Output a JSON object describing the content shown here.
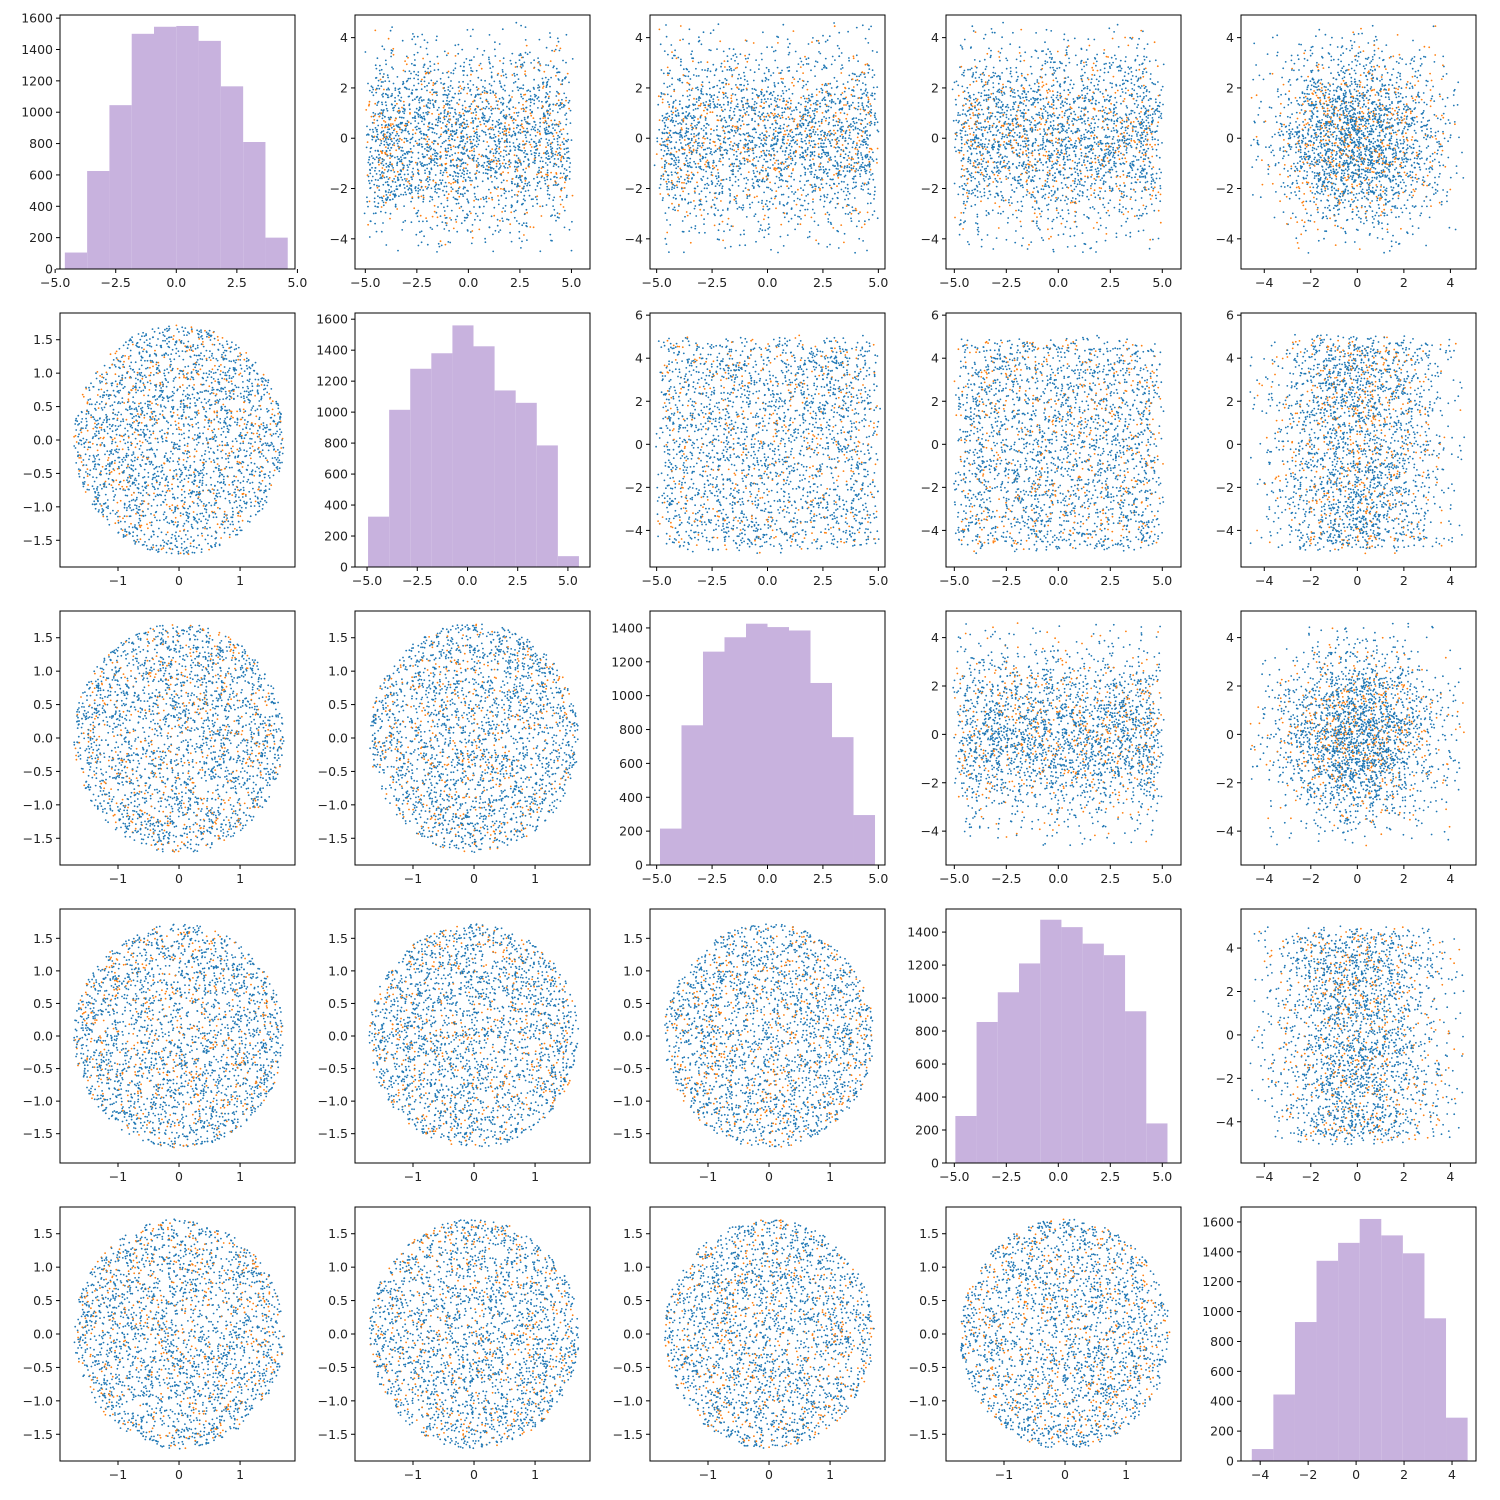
{
  "chart_data": {
    "type": "pairplot",
    "grid_size": 5,
    "colors": {
      "blue": "#1f77b4",
      "orange": "#ff7f0e",
      "hist": "#c8b2de",
      "frame": "#000000"
    },
    "panels": [
      {
        "row": 0,
        "col": 0,
        "type": "histogram",
        "xlim": [
          -4.8,
          4.9
        ],
        "ylim": [
          0,
          1620
        ],
        "bins": [
          -4.6,
          -3.68,
          -2.76,
          -1.84,
          -0.92,
          0.0,
          0.92,
          1.84,
          2.76,
          3.68,
          4.6
        ],
        "counts": [
          105,
          625,
          1045,
          1500,
          1545,
          1550,
          1455,
          1165,
          810,
          200
        ],
        "x_ticks": [
          -5.0,
          -2.5,
          0.0,
          2.5,
          5.0
        ],
        "y_ticks": [
          0,
          200,
          400,
          600,
          800,
          1000,
          1200,
          1400,
          1600
        ]
      },
      {
        "row": 0,
        "col": 1,
        "type": "scatter",
        "xlim": [
          -5.5,
          5.9
        ],
        "ylim": [
          -5.2,
          4.9
        ],
        "dist_x": "uniform",
        "dist_y": "normal",
        "x_ticks": [
          -5.0,
          -2.5,
          0.0,
          2.5,
          5.0
        ],
        "y_ticks": [
          -4,
          -2,
          0,
          2,
          4
        ]
      },
      {
        "row": 0,
        "col": 2,
        "type": "scatter",
        "xlim": [
          -5.3,
          5.3
        ],
        "ylim": [
          -5.2,
          4.9
        ],
        "dist_x": "uniform",
        "dist_y": "normal",
        "x_ticks": [
          -5.0,
          -2.5,
          0.0,
          2.5,
          5.0
        ],
        "y_ticks": [
          -4,
          -2,
          0,
          2,
          4
        ]
      },
      {
        "row": 0,
        "col": 3,
        "type": "scatter",
        "xlim": [
          -5.4,
          5.9
        ],
        "ylim": [
          -5.2,
          4.9
        ],
        "dist_x": "uniform",
        "dist_y": "normal",
        "x_ticks": [
          -5.0,
          -2.5,
          0.0,
          2.5,
          5.0
        ],
        "y_ticks": [
          -4,
          -2,
          0,
          2,
          4
        ]
      },
      {
        "row": 0,
        "col": 4,
        "type": "scatter",
        "xlim": [
          -5.0,
          5.1
        ],
        "ylim": [
          -5.2,
          4.9
        ],
        "dist_x": "normal",
        "dist_y": "normal",
        "x_ticks": [
          -4,
          -2,
          0,
          2,
          4
        ],
        "y_ticks": [
          -4,
          -2,
          0,
          2,
          4
        ]
      },
      {
        "row": 1,
        "col": 0,
        "type": "scatter",
        "xlim": [
          -1.95,
          1.9
        ],
        "ylim": [
          -1.9,
          1.9
        ],
        "dist_x": "disk",
        "dist_y": "disk",
        "x_ticks": [
          -1,
          0,
          1
        ],
        "y_ticks": [
          -1.5,
          -1.0,
          -0.5,
          0.0,
          0.5,
          1.0,
          1.5
        ]
      },
      {
        "row": 1,
        "col": 1,
        "type": "histogram",
        "xlim": [
          -5.6,
          6.1
        ],
        "ylim": [
          0,
          1640
        ],
        "bins": [
          -4.95,
          -3.9,
          -2.85,
          -1.8,
          -0.75,
          0.3,
          1.35,
          2.4,
          3.45,
          4.5,
          5.55
        ],
        "counts": [
          325,
          1015,
          1280,
          1380,
          1560,
          1425,
          1140,
          1060,
          785,
          70
        ],
        "x_ticks": [
          -5.0,
          -2.5,
          0.0,
          2.5,
          5.0
        ],
        "y_ticks": [
          0,
          200,
          400,
          600,
          800,
          1000,
          1200,
          1400,
          1600
        ]
      },
      {
        "row": 1,
        "col": 2,
        "type": "scatter",
        "xlim": [
          -5.3,
          5.3
        ],
        "ylim": [
          -5.7,
          6.1
        ],
        "dist_x": "uniform",
        "dist_y": "uniform",
        "x_ticks": [
          -5.0,
          -2.5,
          0.0,
          2.5,
          5.0
        ],
        "y_ticks": [
          -4,
          -2,
          0,
          2,
          4,
          6
        ]
      },
      {
        "row": 1,
        "col": 3,
        "type": "scatter",
        "xlim": [
          -5.4,
          5.9
        ],
        "ylim": [
          -5.7,
          6.1
        ],
        "dist_x": "uniform",
        "dist_y": "uniform",
        "x_ticks": [
          -5.0,
          -2.5,
          0.0,
          2.5,
          5.0
        ],
        "y_ticks": [
          -4,
          -2,
          0,
          2,
          4,
          6
        ]
      },
      {
        "row": 1,
        "col": 4,
        "type": "scatter",
        "xlim": [
          -5.0,
          5.1
        ],
        "ylim": [
          -5.7,
          6.1
        ],
        "dist_x": "normal",
        "dist_y": "uniform",
        "x_ticks": [
          -4,
          -2,
          0,
          2,
          4
        ],
        "y_ticks": [
          -4,
          -2,
          0,
          2,
          4,
          6
        ]
      },
      {
        "row": 2,
        "col": 0,
        "type": "scatter",
        "xlim": [
          -1.95,
          1.9
        ],
        "ylim": [
          -1.9,
          1.9
        ],
        "dist_x": "disk",
        "dist_y": "disk",
        "x_ticks": [
          -1,
          0,
          1
        ],
        "y_ticks": [
          -1.5,
          -1.0,
          -0.5,
          0.0,
          0.5,
          1.0,
          1.5
        ]
      },
      {
        "row": 2,
        "col": 1,
        "type": "scatter",
        "xlim": [
          -1.95,
          1.9
        ],
        "ylim": [
          -1.9,
          1.9
        ],
        "dist_x": "disk",
        "dist_y": "disk",
        "x_ticks": [
          -1,
          0,
          1
        ],
        "y_ticks": [
          -1.5,
          -1.0,
          -0.5,
          0.0,
          0.5,
          1.0,
          1.5
        ]
      },
      {
        "row": 2,
        "col": 2,
        "type": "histogram",
        "xlim": [
          -5.3,
          5.3
        ],
        "ylim": [
          0,
          1500
        ],
        "bins": [
          -4.85,
          -3.88,
          -2.91,
          -1.94,
          -0.97,
          0.0,
          0.97,
          1.94,
          2.91,
          3.88,
          4.85
        ],
        "counts": [
          215,
          825,
          1260,
          1345,
          1425,
          1405,
          1385,
          1075,
          755,
          295
        ],
        "x_ticks": [
          -5.0,
          -2.5,
          0.0,
          2.5,
          5.0
        ],
        "y_ticks": [
          0,
          200,
          400,
          600,
          800,
          1000,
          1200,
          1400
        ]
      },
      {
        "row": 2,
        "col": 3,
        "type": "scatter",
        "xlim": [
          -5.4,
          5.9
        ],
        "ylim": [
          -5.4,
          5.1
        ],
        "dist_x": "uniform",
        "dist_y": "normal",
        "x_ticks": [
          -5.0,
          -2.5,
          0.0,
          2.5,
          5.0
        ],
        "y_ticks": [
          -4,
          -2,
          0,
          2,
          4
        ]
      },
      {
        "row": 2,
        "col": 4,
        "type": "scatter",
        "xlim": [
          -5.0,
          5.1
        ],
        "ylim": [
          -5.4,
          5.1
        ],
        "dist_x": "normal",
        "dist_y": "normal",
        "x_ticks": [
          -4,
          -2,
          0,
          2,
          4
        ],
        "y_ticks": [
          -4,
          -2,
          0,
          2,
          4
        ]
      },
      {
        "row": 3,
        "col": 0,
        "type": "scatter",
        "xlim": [
          -1.95,
          1.9
        ],
        "ylim": [
          -1.95,
          1.95
        ],
        "dist_x": "disk",
        "dist_y": "disk",
        "x_ticks": [
          -1,
          0,
          1
        ],
        "y_ticks": [
          -1.5,
          -1.0,
          -0.5,
          0.0,
          0.5,
          1.0,
          1.5
        ]
      },
      {
        "row": 3,
        "col": 1,
        "type": "scatter",
        "xlim": [
          -1.95,
          1.9
        ],
        "ylim": [
          -1.95,
          1.95
        ],
        "dist_x": "disk",
        "dist_y": "disk",
        "x_ticks": [
          -1,
          0,
          1
        ],
        "y_ticks": [
          -1.5,
          -1.0,
          -0.5,
          0.0,
          0.5,
          1.0,
          1.5
        ]
      },
      {
        "row": 3,
        "col": 2,
        "type": "scatter",
        "xlim": [
          -1.95,
          1.9
        ],
        "ylim": [
          -1.95,
          1.95
        ],
        "dist_x": "disk",
        "dist_y": "disk",
        "x_ticks": [
          -1,
          0,
          1
        ],
        "y_ticks": [
          -1.5,
          -1.0,
          -0.5,
          0.0,
          0.5,
          1.0,
          1.5
        ]
      },
      {
        "row": 3,
        "col": 3,
        "type": "histogram",
        "xlim": [
          -5.4,
          5.9
        ],
        "ylim": [
          0,
          1540
        ],
        "bins": [
          -4.95,
          -3.93,
          -2.91,
          -1.89,
          -0.87,
          0.15,
          1.17,
          2.19,
          3.21,
          4.23,
          5.25
        ],
        "counts": [
          285,
          855,
          1035,
          1210,
          1475,
          1430,
          1330,
          1260,
          920,
          240
        ],
        "x_ticks": [
          -5.0,
          -2.5,
          0.0,
          2.5,
          5.0
        ],
        "y_ticks": [
          0,
          200,
          400,
          600,
          800,
          1000,
          1200,
          1400
        ]
      },
      {
        "row": 3,
        "col": 4,
        "type": "scatter",
        "xlim": [
          -5.0,
          5.1
        ],
        "ylim": [
          -5.9,
          5.8
        ],
        "dist_x": "normal",
        "dist_y": "uniform",
        "x_ticks": [
          -4,
          -2,
          0,
          2,
          4
        ],
        "y_ticks": [
          -4,
          -2,
          0,
          2,
          4
        ]
      },
      {
        "row": 4,
        "col": 0,
        "type": "scatter",
        "xlim": [
          -1.95,
          1.9
        ],
        "ylim": [
          -1.9,
          1.9
        ],
        "dist_x": "disk",
        "dist_y": "disk",
        "x_ticks": [
          -1,
          0,
          1
        ],
        "y_ticks": [
          -1.5,
          -1.0,
          -0.5,
          0.0,
          0.5,
          1.0,
          1.5
        ]
      },
      {
        "row": 4,
        "col": 1,
        "type": "scatter",
        "xlim": [
          -1.95,
          1.9
        ],
        "ylim": [
          -1.9,
          1.9
        ],
        "dist_x": "disk",
        "dist_y": "disk",
        "x_ticks": [
          -1,
          0,
          1
        ],
        "y_ticks": [
          -1.5,
          -1.0,
          -0.5,
          0.0,
          0.5,
          1.0,
          1.5
        ]
      },
      {
        "row": 4,
        "col": 2,
        "type": "scatter",
        "xlim": [
          -1.95,
          1.9
        ],
        "ylim": [
          -1.9,
          1.9
        ],
        "dist_x": "disk",
        "dist_y": "disk",
        "x_ticks": [
          -1,
          0,
          1
        ],
        "y_ticks": [
          -1.5,
          -1.0,
          -0.5,
          0.0,
          0.5,
          1.0,
          1.5
        ]
      },
      {
        "row": 4,
        "col": 3,
        "type": "scatter",
        "xlim": [
          -1.95,
          1.9
        ],
        "ylim": [
          -1.9,
          1.9
        ],
        "dist_x": "disk",
        "dist_y": "disk",
        "x_ticks": [
          -1,
          0,
          1
        ],
        "y_ticks": [
          -1.5,
          -1.0,
          -0.5,
          0.0,
          0.5,
          1.0,
          1.5
        ]
      },
      {
        "row": 4,
        "col": 4,
        "type": "histogram",
        "xlim": [
          -4.8,
          5.0
        ],
        "ylim": [
          0,
          1700
        ],
        "bins": [
          -4.35,
          -3.45,
          -2.55,
          -1.65,
          -0.75,
          0.15,
          1.05,
          1.95,
          2.85,
          3.75,
          4.65
        ],
        "counts": [
          80,
          445,
          930,
          1340,
          1460,
          1620,
          1510,
          1390,
          955,
          290
        ],
        "x_ticks": [
          -4,
          -2,
          0,
          2,
          4
        ],
        "y_ticks": [
          0,
          200,
          400,
          600,
          800,
          1000,
          1200,
          1400,
          1600
        ]
      }
    ]
  }
}
